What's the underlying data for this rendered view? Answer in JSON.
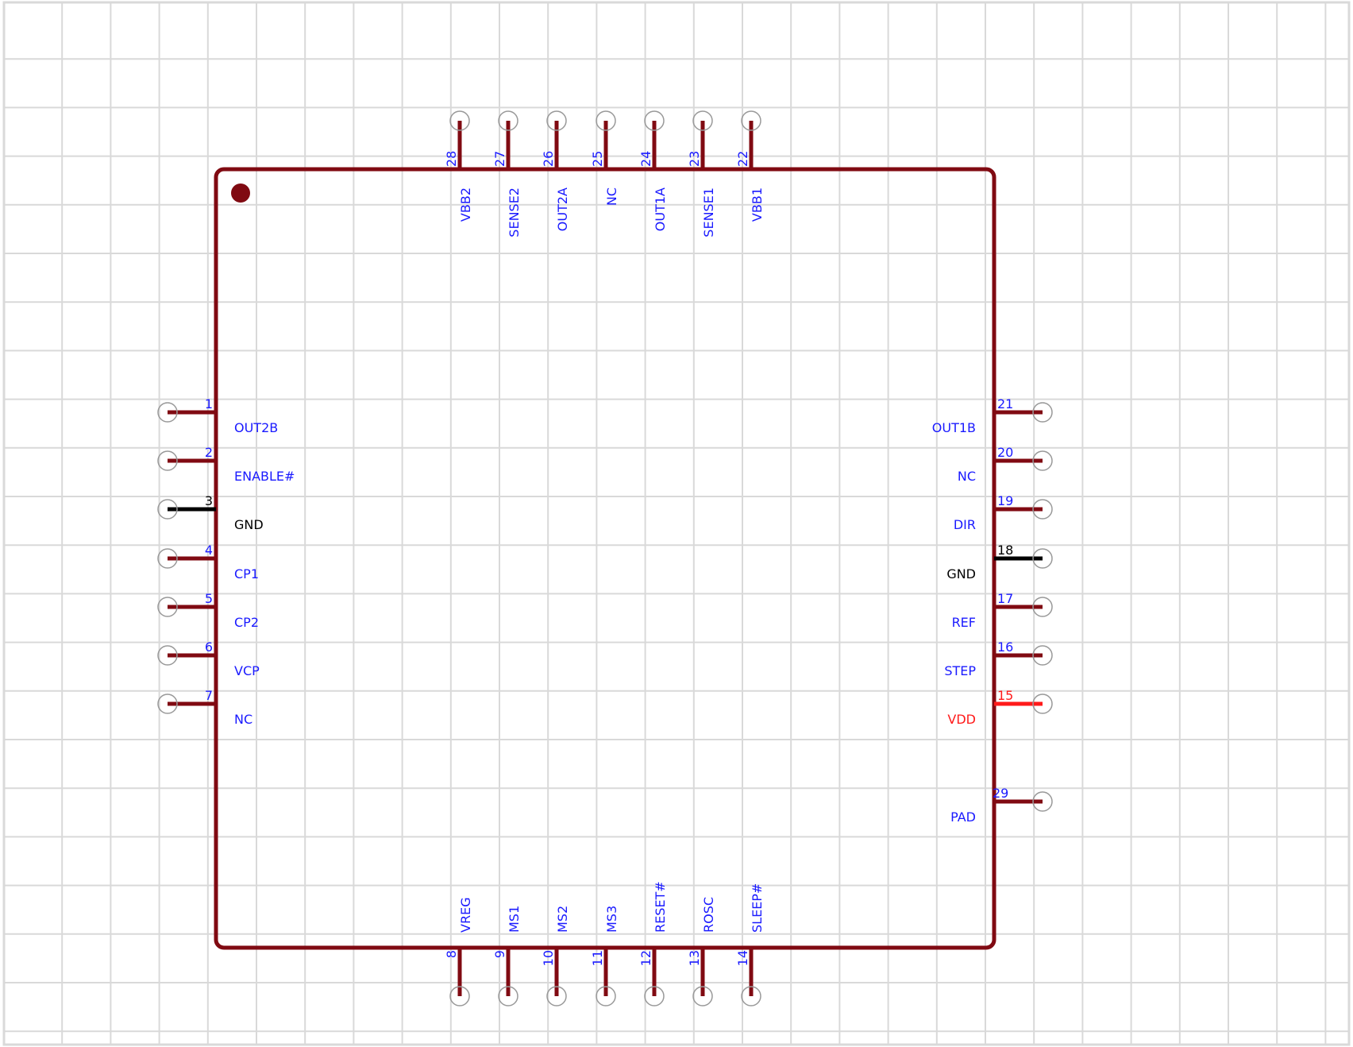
{
  "colors": {
    "background": "#ffffff",
    "grid": "#d9d9d9",
    "body_outline": "#800a12",
    "pin_line": "#800a12",
    "pin_text": "#1a1aff",
    "gnd": "#000000",
    "power": "#ff1a1a",
    "connector_circle": "#999999"
  },
  "component": {
    "pin1_marker": "filled-dot",
    "left_pins": [
      {
        "number": "1",
        "name": "OUT2B",
        "kind": "signal"
      },
      {
        "number": "2",
        "name": "ENABLE#",
        "kind": "signal"
      },
      {
        "number": "3",
        "name": "GND",
        "kind": "ground"
      },
      {
        "number": "4",
        "name": "CP1",
        "kind": "signal"
      },
      {
        "number": "5",
        "name": "CP2",
        "kind": "signal"
      },
      {
        "number": "6",
        "name": "VCP",
        "kind": "signal"
      },
      {
        "number": "7",
        "name": "NC",
        "kind": "signal"
      }
    ],
    "right_pins": [
      {
        "number": "21",
        "name": "OUT1B",
        "kind": "signal"
      },
      {
        "number": "20",
        "name": "NC",
        "kind": "signal"
      },
      {
        "number": "19",
        "name": "DIR",
        "kind": "signal"
      },
      {
        "number": "18",
        "name": "GND",
        "kind": "ground"
      },
      {
        "number": "17",
        "name": "REF",
        "kind": "signal"
      },
      {
        "number": "16",
        "name": "STEP",
        "kind": "signal"
      },
      {
        "number": "15",
        "name": "VDD",
        "kind": "power"
      },
      {
        "number": "29",
        "name": "PAD",
        "kind": "signal"
      }
    ],
    "top_pins": [
      {
        "number": "28",
        "name": "VBB2",
        "kind": "signal"
      },
      {
        "number": "27",
        "name": "SENSE2",
        "kind": "signal"
      },
      {
        "number": "26",
        "name": "OUT2A",
        "kind": "signal"
      },
      {
        "number": "25",
        "name": "NC",
        "kind": "signal"
      },
      {
        "number": "24",
        "name": "OUT1A",
        "kind": "signal"
      },
      {
        "number": "23",
        "name": "SENSE1",
        "kind": "signal"
      },
      {
        "number": "22",
        "name": "VBB1",
        "kind": "signal"
      }
    ],
    "bottom_pins": [
      {
        "number": "8",
        "name": "VREG",
        "kind": "signal"
      },
      {
        "number": "9",
        "name": "MS1",
        "kind": "signal"
      },
      {
        "number": "10",
        "name": "MS2",
        "kind": "signal"
      },
      {
        "number": "11",
        "name": "MS3",
        "kind": "signal"
      },
      {
        "number": "12",
        "name": "RESET#",
        "kind": "signal"
      },
      {
        "number": "13",
        "name": "ROSC",
        "kind": "signal"
      },
      {
        "number": "14",
        "name": "SLEEP#",
        "kind": "signal"
      }
    ]
  }
}
